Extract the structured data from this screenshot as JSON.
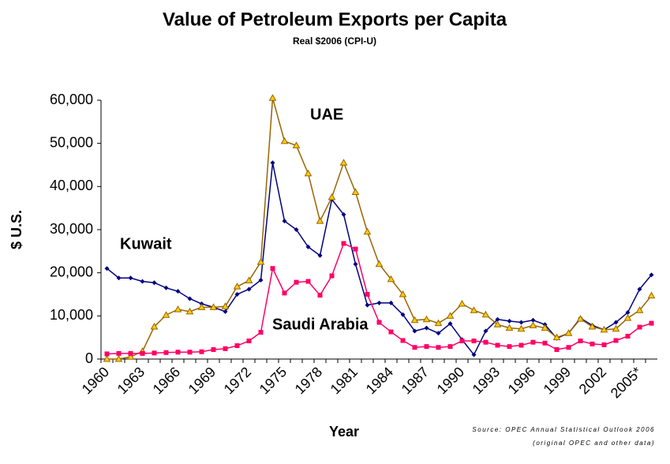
{
  "chart_data": {
    "type": "line",
    "title": "Value of Petroleum Exports per Capita",
    "subtitle": "Real $2006 (CPI-U)",
    "x_label": "Year",
    "y_label": "$ U.S.",
    "annotations": [
      "UAE",
      "Kuwait",
      "Saudi Arabia"
    ],
    "source": [
      "Source: OPEC Annual Statistical Outlook 2006",
      "(original OPEC and other data)"
    ],
    "categories": [
      "1960",
      null,
      null,
      "1963",
      null,
      null,
      "1966",
      null,
      null,
      "1969",
      null,
      null,
      "1972",
      null,
      null,
      "1975",
      null,
      null,
      "1978",
      null,
      null,
      "1981",
      null,
      null,
      "1984",
      null,
      null,
      "1987",
      null,
      null,
      "1990",
      null,
      null,
      "1993",
      null,
      null,
      "1996",
      null,
      null,
      "1999",
      null,
      null,
      "2002",
      null,
      null,
      "2005*",
      null
    ],
    "ylim": [
      0,
      60000
    ],
    "yticks": [
      0,
      {
        "value": 10000,
        "label": "10,000"
      },
      {
        "value": 20000,
        "label": "20,000"
      },
      {
        "value": 30000,
        "label": "30,000"
      },
      {
        "value": 40000,
        "label": "40,000"
      },
      {
        "value": 50000,
        "label": "50,000"
      },
      {
        "value": 60000,
        "label": "60,000"
      }
    ],
    "series": [
      {
        "name": "Kuwait",
        "color": "#000080",
        "marker": "diamond",
        "values": [
          21000,
          18800,
          18800,
          18000,
          17700,
          16500,
          15700,
          14000,
          12800,
          12000,
          11000,
          15000,
          16200,
          18300,
          45500,
          32000,
          30000,
          26000,
          24000,
          37000,
          33500,
          22000,
          12500,
          13000,
          13000,
          10300,
          6500,
          7200,
          6000,
          8200,
          4500,
          1000,
          6500,
          9200,
          8800,
          8500,
          9000,
          8000,
          4800,
          6000,
          9500,
          7800,
          6800,
          8500,
          10800,
          16200,
          19500
        ]
      },
      {
        "name": "UAE",
        "color": "#996600",
        "marker": "triangle",
        "values": [
          0,
          0,
          500,
          1800,
          7500,
          10200,
          11500,
          11000,
          12000,
          12000,
          12200,
          16800,
          18200,
          22500,
          60500,
          50500,
          49500,
          43000,
          32000,
          37500,
          45500,
          38700,
          29500,
          22000,
          18500,
          15000,
          9000,
          9200,
          8300,
          10000,
          12800,
          11300,
          10300,
          8000,
          7200,
          7000,
          7800,
          7200,
          5000,
          6000,
          9300,
          7500,
          6800,
          7000,
          9500,
          11300,
          14700
        ]
      },
      {
        "name": "Saudi Arabia",
        "color": "#ff0066",
        "marker": "square",
        "values": [
          1200,
          1300,
          1300,
          1300,
          1400,
          1500,
          1600,
          1600,
          1700,
          2200,
          2400,
          3100,
          4200,
          6200,
          21000,
          15300,
          17800,
          18000,
          14800,
          19300,
          26800,
          25500,
          15000,
          8500,
          6300,
          4300,
          2700,
          2900,
          2700,
          2900,
          4200,
          4200,
          3900,
          3200,
          2900,
          3200,
          3900,
          3700,
          2200,
          2700,
          4200,
          3500,
          3300,
          4300,
          5300,
          7400,
          8300
        ]
      }
    ]
  }
}
